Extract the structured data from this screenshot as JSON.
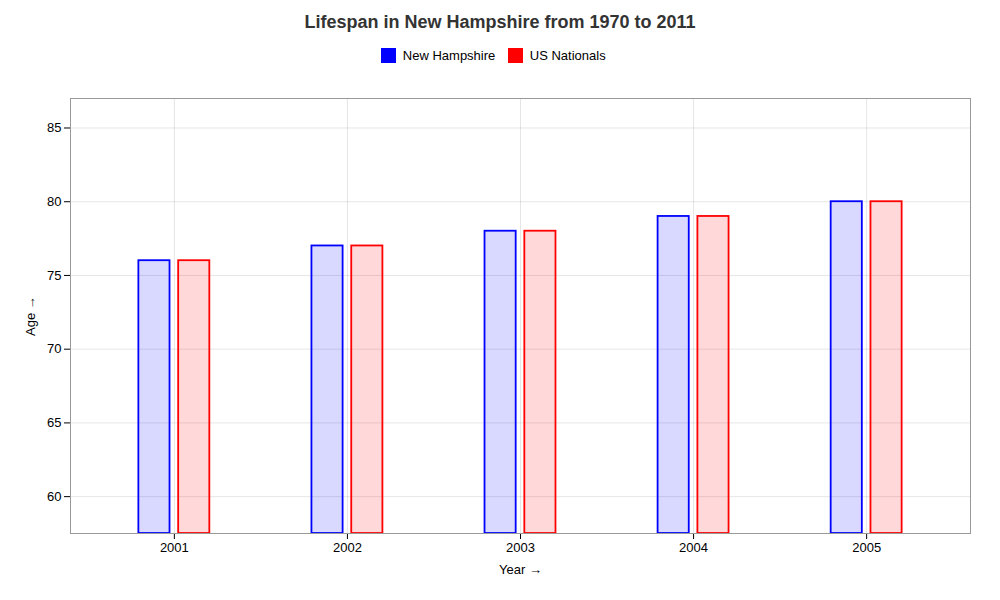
{
  "chart_data": {
    "type": "bar",
    "title": "Lifespan in New Hampshire from 1970 to 2011",
    "x_label": "Year",
    "y_label": "Age",
    "categories": [
      "2001",
      "2002",
      "2003",
      "2004",
      "2005"
    ],
    "series": [
      {
        "name": "New Hampshire",
        "color": "#0000ff",
        "values": [
          76,
          77,
          78,
          79,
          80
        ]
      },
      {
        "name": "US Nationals",
        "color": "#ff0000",
        "values": [
          76,
          77,
          78,
          79,
          80
        ]
      }
    ],
    "ylim": [
      57.5,
      87
    ],
    "yticks": [
      60,
      65,
      70,
      75,
      80,
      85
    ],
    "grid": true,
    "legend": "top"
  }
}
